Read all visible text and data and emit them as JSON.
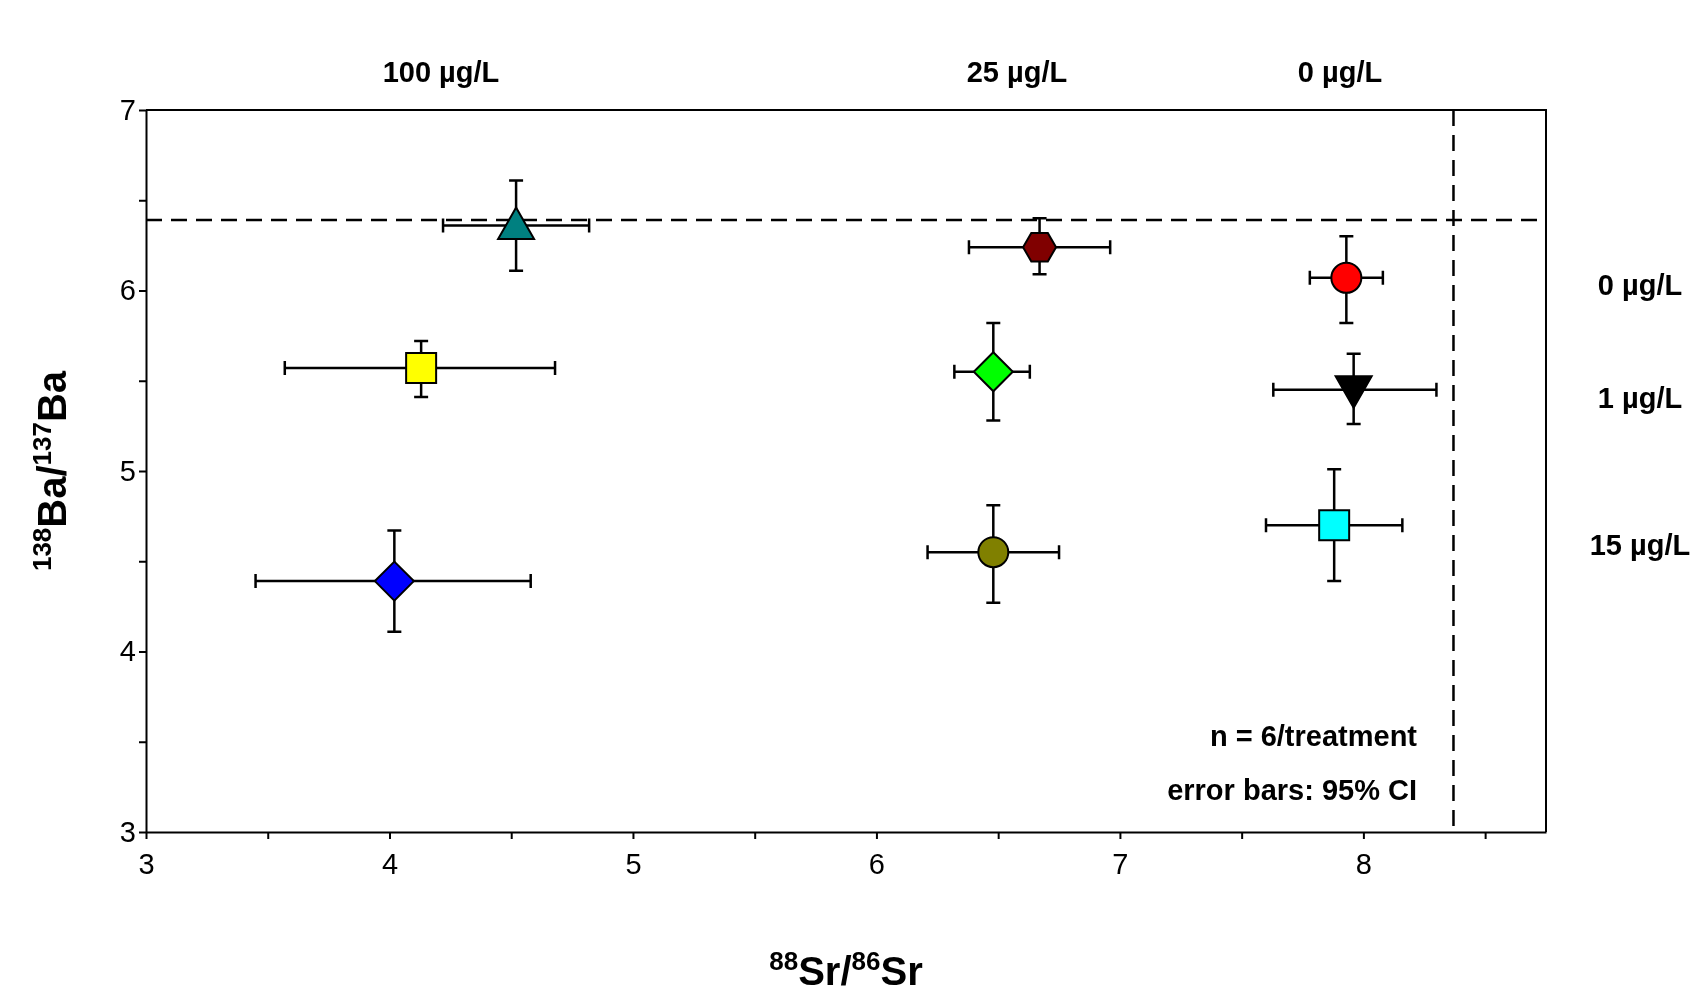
{
  "chart_data": {
    "type": "scatter",
    "xlabel": "$^{88}$Sr/$^{86}$Sr",
    "ylabel": "$^{138}$Ba/$^{137}$Ba",
    "xlim": [
      3,
      8.75
    ],
    "xticks": [
      3,
      {
        "value": 3.5,
        "label": null
      },
      4,
      {
        "value": 4.5,
        "label": null
      },
      5,
      {
        "value": 5.5,
        "label": null
      },
      6,
      {
        "value": 6.5,
        "label": null
      },
      7,
      {
        "value": 7.5,
        "label": null
      },
      8,
      {
        "value": 8.5,
        "label": null
      }
    ],
    "ylim": [
      3,
      7
    ],
    "yticks": [
      3,
      {
        "value": 3.5,
        "label": null
      },
      4,
      {
        "value": 4.5,
        "label": null
      },
      5,
      {
        "value": 5.5,
        "label": null
      },
      6,
      {
        "value": 6.5,
        "label": null
      },
      7
    ],
    "grid": false,
    "series": [
      {
        "color": "#008080",
        "marker": "triangle",
        "x": [
          4.52
        ],
        "values": [
          6.36
        ],
        "errors": [
          [
            6.11,
            6.61
          ]
        ],
        "xerrors": [
          [
            4.22,
            4.82
          ]
        ]
      },
      {
        "color": "#ffff00",
        "marker": "square",
        "x": [
          4.13
        ],
        "values": [
          5.57
        ],
        "errors": [
          [
            5.41,
            5.72
          ]
        ],
        "xerrors": [
          [
            3.57,
            4.68
          ]
        ]
      },
      {
        "color": "#0000ff",
        "marker": "diamond",
        "x": [
          4.02
        ],
        "values": [
          4.39
        ],
        "errors": [
          [
            4.11,
            4.67
          ]
        ],
        "xerrors": [
          [
            3.45,
            4.58
          ]
        ]
      },
      {
        "color": "#800000",
        "x": [
          6.67
        ],
        "values": [
          6.24
        ],
        "errors": [
          [
            6.09,
            6.4
          ]
        ],
        "xerrors": [
          [
            6.38,
            6.96
          ]
        ]
      },
      {
        "color": "#00ff00",
        "marker": "diamond",
        "x": [
          6.48
        ],
        "values": [
          5.55
        ],
        "errors": [
          [
            5.28,
            5.82
          ]
        ],
        "xerrors": [
          [
            6.32,
            6.63
          ]
        ]
      },
      {
        "color": "#808000",
        "marker": "circle",
        "x": [
          6.48
        ],
        "values": [
          4.55
        ],
        "errors": [
          [
            4.27,
            4.81
          ]
        ],
        "xerrors": [
          [
            6.21,
            6.75
          ]
        ]
      },
      {
        "color": "#ff0000",
        "marker": "circle",
        "x": [
          7.93
        ],
        "values": [
          6.07
        ],
        "errors": [
          [
            5.82,
            6.3
          ]
        ],
        "xerrors": [
          [
            7.78,
            8.08
          ]
        ]
      },
      {
        "color": "#000000",
        "marker": "triangle-down",
        "x": [
          7.96
        ],
        "values": [
          5.45
        ],
        "errors": [
          [
            5.26,
            5.65
          ]
        ],
        "xerrors": [
          [
            7.63,
            8.3
          ]
        ]
      },
      {
        "color": "#00ffff",
        "marker": "square",
        "x": [
          7.88
        ],
        "values": [
          4.7
        ],
        "errors": [
          [
            4.39,
            5.01
          ]
        ],
        "xerrors": [
          [
            7.6,
            8.16
          ]
        ]
      }
    ],
    "ref_lines": [
      {
        "axis": "y",
        "value": 6.39,
        "line_style": "dashed"
      },
      {
        "axis": "x",
        "value": 8.37,
        "line_style": "dashed"
      }
    ],
    "annotations": [
      "100 µg/L",
      "25 µg/L",
      "0 µg/L",
      "0 µg/L",
      "1 µg/L",
      "15 µg/L",
      "n = 6/treatment",
      "error bars: 95% CI"
    ]
  }
}
